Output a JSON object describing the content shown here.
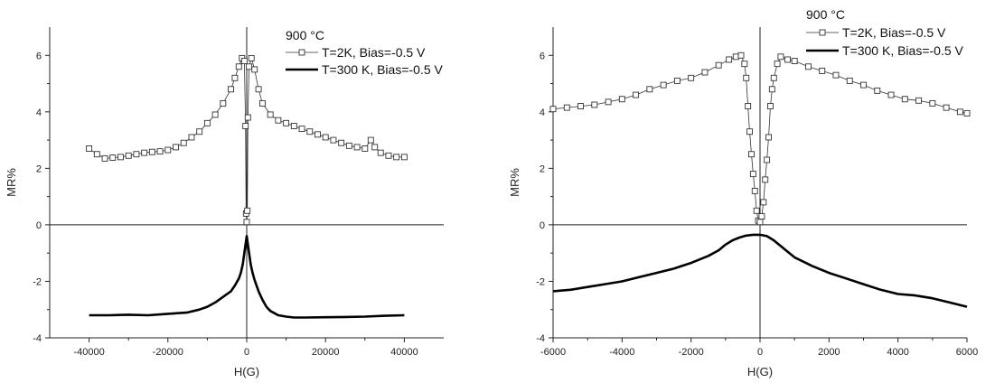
{
  "chart_data": [
    {
      "type": "line",
      "title": "",
      "xlabel": "H(G)",
      "ylabel": "MR%",
      "xlim": [
        -50000,
        50000
      ],
      "ylim": [
        -4,
        7
      ],
      "xticks": [
        -40000,
        -20000,
        0,
        20000,
        40000
      ],
      "xtick_labels": [
        "-40000",
        "-20000",
        "0",
        "20000",
        "40000"
      ],
      "yticks": [
        -4,
        -2,
        0,
        2,
        4,
        6
      ],
      "ytick_labels": [
        "-4",
        "-2",
        "0",
        "2",
        "4",
        "6"
      ],
      "zero_lines": true,
      "grid": false,
      "legend": {
        "title": "900 °C",
        "position": "top-center",
        "entries": [
          "T=2K, Bias=-0.5 V",
          "T=300 K, Bias=-0.5 V"
        ]
      },
      "series": [
        {
          "name": "T=2K, Bias=-0.5 V",
          "style": "open-square-thin-line",
          "color": "#333333",
          "x": [
            -40000,
            -38000,
            -36000,
            -34000,
            -32000,
            -30000,
            -28000,
            -26000,
            -24000,
            -22000,
            -20000,
            -18000,
            -16000,
            -14000,
            -12000,
            -10000,
            -8000,
            -6000,
            -4000,
            -3000,
            -2000,
            -1200,
            -600,
            -300,
            -150,
            0,
            150,
            300,
            600,
            1200,
            2000,
            3000,
            4000,
            6000,
            8000,
            10000,
            12000,
            14000,
            16000,
            18000,
            20000,
            22000,
            24000,
            26000,
            28000,
            30000,
            31500,
            32500,
            34000,
            36000,
            38000,
            40000
          ],
          "y": [
            2.7,
            2.5,
            2.35,
            2.38,
            2.4,
            2.45,
            2.5,
            2.55,
            2.58,
            2.6,
            2.65,
            2.75,
            2.9,
            3.1,
            3.3,
            3.6,
            3.9,
            4.3,
            4.8,
            5.2,
            5.6,
            5.9,
            5.8,
            3.5,
            0.4,
            0.1,
            0.5,
            3.8,
            5.6,
            5.9,
            5.5,
            4.8,
            4.3,
            3.9,
            3.7,
            3.6,
            3.5,
            3.4,
            3.3,
            3.2,
            3.1,
            3.0,
            2.9,
            2.8,
            2.75,
            2.7,
            3.0,
            2.75,
            2.55,
            2.45,
            2.4,
            2.4
          ]
        },
        {
          "name": "T=300 K, Bias=-0.5 V",
          "style": "thick-line",
          "color": "#000000",
          "x": [
            -40000,
            -35000,
            -30000,
            -25000,
            -20000,
            -15000,
            -12000,
            -10000,
            -8000,
            -6000,
            -4000,
            -3000,
            -2000,
            -1500,
            -1000,
            -500,
            0,
            500,
            1000,
            1500,
            2000,
            3000,
            4000,
            5000,
            6000,
            8000,
            10000,
            12000,
            15000,
            20000,
            25000,
            30000,
            35000,
            40000
          ],
          "y": [
            -3.2,
            -3.2,
            -3.18,
            -3.2,
            -3.15,
            -3.1,
            -3.0,
            -2.9,
            -2.75,
            -2.55,
            -2.35,
            -2.15,
            -1.9,
            -1.7,
            -1.4,
            -0.9,
            -0.4,
            -0.9,
            -1.4,
            -1.7,
            -1.95,
            -2.35,
            -2.65,
            -2.9,
            -3.05,
            -3.2,
            -3.25,
            -3.28,
            -3.28,
            -3.27,
            -3.26,
            -3.25,
            -3.22,
            -3.2
          ]
        }
      ]
    },
    {
      "type": "line",
      "title": "",
      "xlabel": "H(G)",
      "ylabel": "MR%",
      "xlim": [
        -6000,
        6000
      ],
      "ylim": [
        -4,
        7
      ],
      "xticks": [
        -6000,
        -4000,
        -2000,
        0,
        2000,
        4000,
        6000
      ],
      "xtick_labels": [
        "-6000",
        "-4000",
        "-2000",
        "0",
        "2000",
        "4000",
        "6000"
      ],
      "yticks": [
        -4,
        -2,
        0,
        2,
        4,
        6
      ],
      "ytick_labels": [
        "-4",
        "-2",
        "0",
        "2",
        "4",
        "6"
      ],
      "zero_lines": true,
      "grid": false,
      "legend": {
        "title": "900 °C",
        "position": "top-right",
        "entries": [
          "T=2K, Bias=-0.5 V",
          "T=300 K, Bias=-0.5 V"
        ]
      },
      "series": [
        {
          "name": "T=2K, Bias=-0.5 V",
          "style": "open-square-thin-line",
          "color": "#333333",
          "x": [
            -6000,
            -5600,
            -5200,
            -4800,
            -4400,
            -4000,
            -3600,
            -3200,
            -2800,
            -2400,
            -2000,
            -1600,
            -1200,
            -900,
            -700,
            -550,
            -450,
            -400,
            -350,
            -300,
            -250,
            -200,
            -150,
            -100,
            -50,
            0,
            50,
            100,
            150,
            200,
            250,
            300,
            350,
            400,
            500,
            600,
            800,
            1000,
            1400,
            1800,
            2200,
            2600,
            3000,
            3400,
            3800,
            4200,
            4600,
            5000,
            5400,
            5800,
            6000
          ],
          "y": [
            4.1,
            4.15,
            4.2,
            4.25,
            4.35,
            4.45,
            4.6,
            4.8,
            4.95,
            5.1,
            5.2,
            5.4,
            5.65,
            5.85,
            5.95,
            6.0,
            5.7,
            5.2,
            4.2,
            3.3,
            2.5,
            1.8,
            1.2,
            0.5,
            0.15,
            0.1,
            0.3,
            0.8,
            1.6,
            2.3,
            3.1,
            4.2,
            4.8,
            5.2,
            5.7,
            5.95,
            5.85,
            5.8,
            5.6,
            5.45,
            5.3,
            5.1,
            4.95,
            4.75,
            4.6,
            4.45,
            4.4,
            4.3,
            4.15,
            4.0,
            3.95
          ]
        },
        {
          "name": "T=300 K, Bias=-0.5 V",
          "style": "thick-line",
          "color": "#000000",
          "x": [
            -6000,
            -5500,
            -5000,
            -4500,
            -4000,
            -3500,
            -3000,
            -2500,
            -2000,
            -1500,
            -1200,
            -1000,
            -800,
            -600,
            -400,
            -200,
            0,
            200,
            400,
            600,
            800,
            1000,
            1500,
            2000,
            2500,
            3000,
            3500,
            4000,
            4500,
            5000,
            5500,
            6000
          ],
          "y": [
            -2.35,
            -2.3,
            -2.2,
            -2.1,
            -2.0,
            -1.85,
            -1.7,
            -1.55,
            -1.35,
            -1.1,
            -0.9,
            -0.7,
            -0.55,
            -0.45,
            -0.38,
            -0.35,
            -0.35,
            -0.4,
            -0.55,
            -0.75,
            -0.95,
            -1.15,
            -1.45,
            -1.7,
            -1.9,
            -2.1,
            -2.3,
            -2.45,
            -2.5,
            -2.6,
            -2.75,
            -2.9
          ]
        }
      ]
    }
  ]
}
